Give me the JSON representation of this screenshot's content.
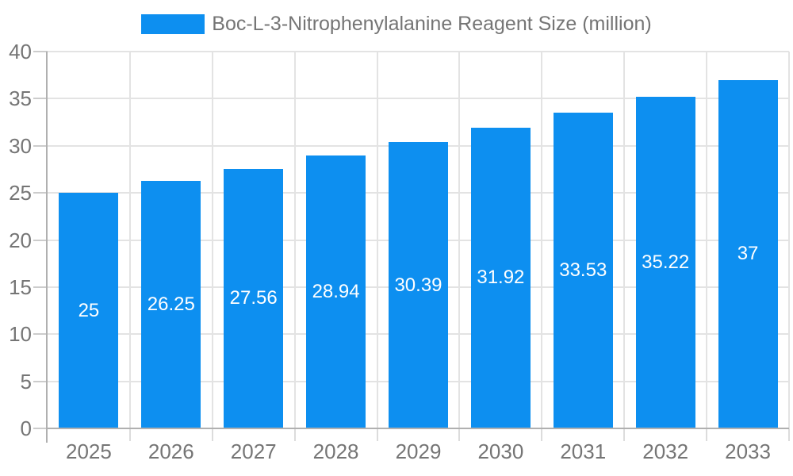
{
  "chart_data": {
    "type": "bar",
    "title": "Boc-L-3-Nitrophenylalanine Reagent Size (million)",
    "categories": [
      "2025",
      "2026",
      "2027",
      "2028",
      "2029",
      "2030",
      "2031",
      "2032",
      "2033"
    ],
    "values": [
      25,
      26.25,
      27.56,
      28.94,
      30.39,
      31.92,
      33.53,
      35.22,
      37
    ],
    "value_labels": [
      "25",
      "26.25",
      "27.56",
      "28.94",
      "30.39",
      "31.92",
      "33.53",
      "35.22",
      "37"
    ],
    "xlabel": "",
    "ylabel": "",
    "ylim": [
      0,
      40
    ],
    "yticks": [
      0,
      5,
      10,
      15,
      20,
      25,
      30,
      35,
      40
    ],
    "grid": true,
    "legend_position": "top-center",
    "colors": {
      "bar": "#0d8ff0",
      "grid": "#e3e3e3",
      "axis": "#b0b0b0",
      "y_tick": "#cccccc",
      "x_tick": "#dcdcdc",
      "label_text": "#757575",
      "value_text": "#ffffff",
      "background": "#ffffff"
    }
  }
}
